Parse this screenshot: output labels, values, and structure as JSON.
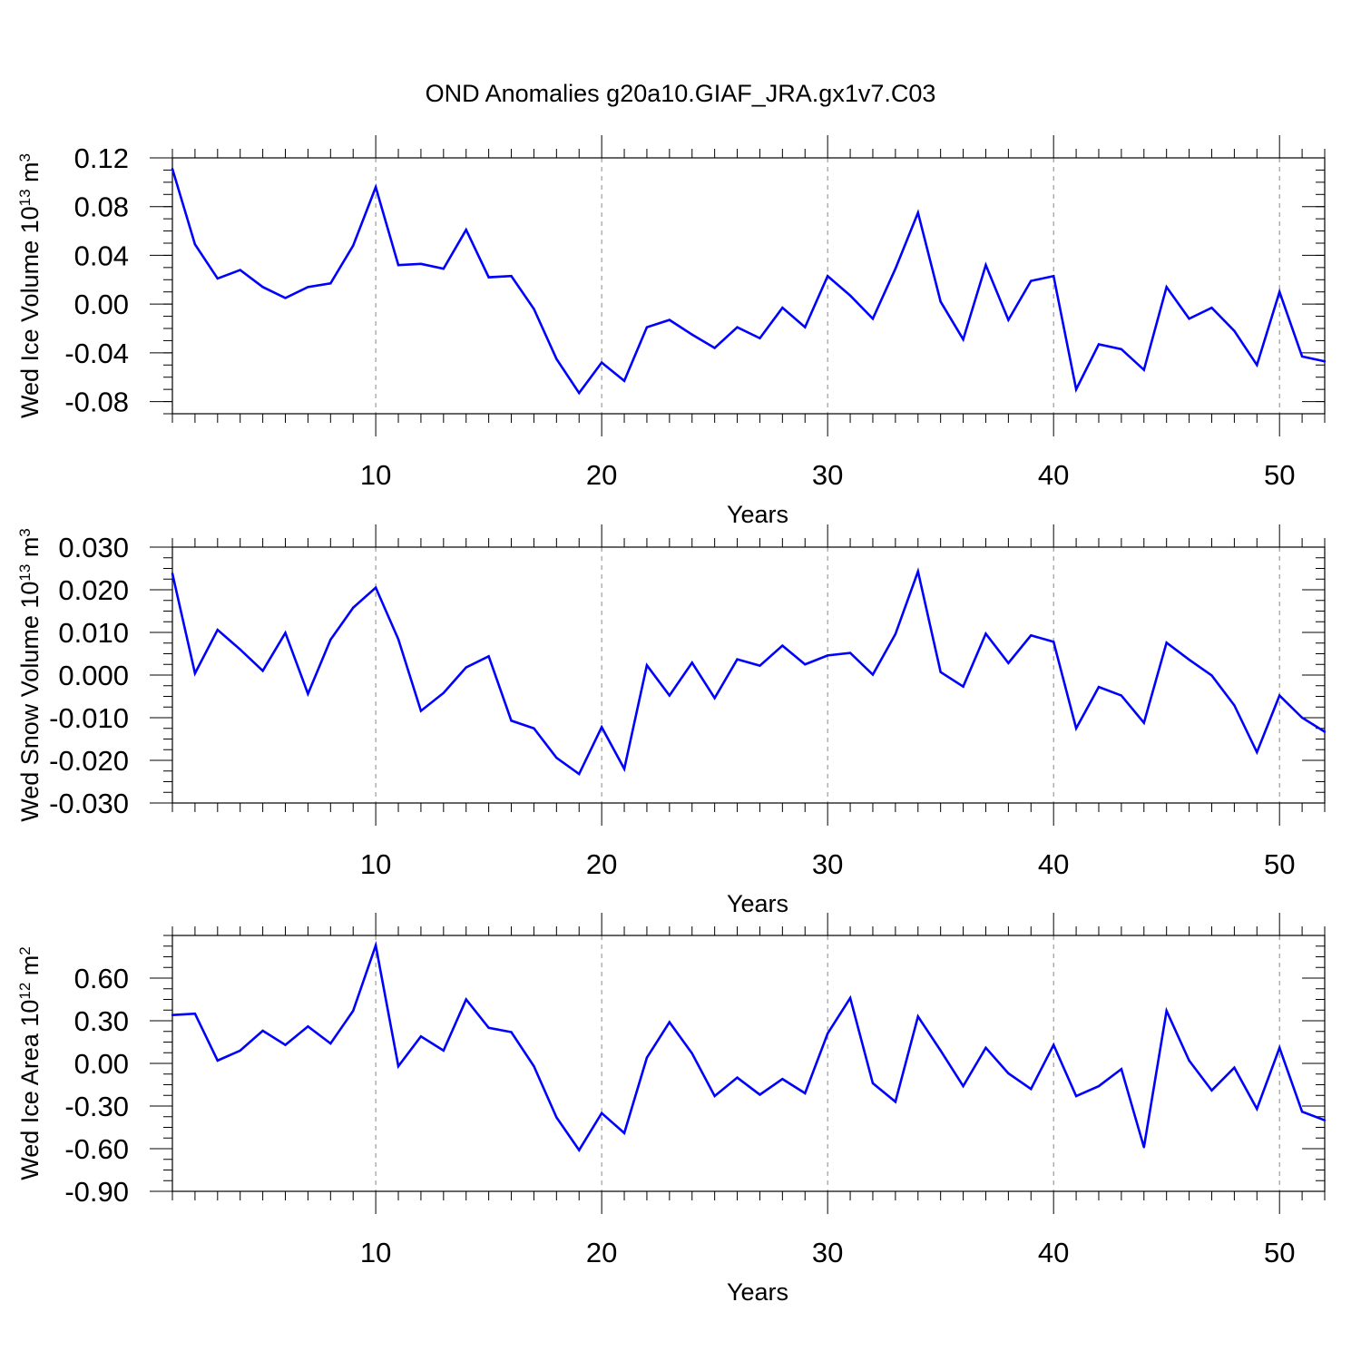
{
  "chart_data": {
    "type": "line",
    "title": "OND Anomalies g20a10.GIAF_JRA.gx1v7.C03",
    "series_color": "#0000ff",
    "grid": "vertical dashed at major x ticks",
    "panels": [
      {
        "id": "ice-volume",
        "ylabel_base": "Wed Ice Volume 10",
        "ylabel_exp": "13",
        "ylabel_unit": "m",
        "ylabel_unit_exp": "3",
        "xlabel": "Years",
        "xlim": [
          1,
          52
        ],
        "ylim": [
          -0.09,
          0.12
        ],
        "yticks": [
          -0.08,
          -0.04,
          0.0,
          0.04,
          0.08,
          0.12
        ],
        "ytick_labels": [
          "-0.08",
          "-0.04",
          "0.00",
          "0.04",
          "0.08",
          "0.12"
        ],
        "yminor_step": 0.01,
        "xticks": [
          10,
          20,
          30,
          40,
          50
        ],
        "xtick_labels": [
          "10",
          "20",
          "30",
          "40",
          "50"
        ],
        "x": [
          1,
          2,
          3,
          4,
          5,
          6,
          7,
          8,
          9,
          10,
          11,
          12,
          13,
          14,
          15,
          16,
          17,
          18,
          19,
          20,
          21,
          22,
          23,
          24,
          25,
          26,
          27,
          28,
          29,
          30,
          31,
          32,
          33,
          34,
          35,
          36,
          37,
          38,
          39,
          40,
          41,
          42,
          43,
          44,
          45,
          46,
          47,
          48,
          49,
          50,
          51,
          52
        ],
        "values": [
          0.111,
          0.049,
          0.021,
          0.028,
          0.014,
          0.005,
          0.014,
          0.017,
          0.048,
          0.096,
          0.032,
          0.033,
          0.029,
          0.061,
          0.022,
          0.023,
          -0.004,
          -0.045,
          -0.073,
          -0.048,
          -0.063,
          -0.019,
          -0.013,
          -0.025,
          -0.036,
          -0.019,
          -0.028,
          -0.003,
          -0.019,
          0.023,
          0.007,
          -0.012,
          0.029,
          0.075,
          0.002,
          -0.029,
          0.032,
          -0.013,
          0.019,
          0.023,
          -0.07,
          -0.033,
          -0.037,
          -0.054,
          0.014,
          -0.012,
          -0.003,
          -0.022,
          -0.05,
          0.01,
          -0.043,
          -0.047
        ]
      },
      {
        "id": "snow-volume",
        "ylabel_base": "Wed Snow Volume 10",
        "ylabel_exp": "13",
        "ylabel_unit": "m",
        "ylabel_unit_exp": "3",
        "xlabel": "Years",
        "xlim": [
          1,
          52
        ],
        "ylim": [
          -0.03,
          0.03
        ],
        "yticks": [
          -0.03,
          -0.02,
          -0.01,
          0.0,
          0.01,
          0.02,
          0.03
        ],
        "ytick_labels": [
          "-0.030",
          "-0.020",
          "-0.010",
          "0.000",
          "0.010",
          "0.020",
          "0.030"
        ],
        "yminor_step": 0.0025,
        "xticks": [
          10,
          20,
          30,
          40,
          50
        ],
        "xtick_labels": [
          "10",
          "20",
          "30",
          "40",
          "50"
        ],
        "x": [
          1,
          2,
          3,
          4,
          5,
          6,
          7,
          8,
          9,
          10,
          11,
          12,
          13,
          14,
          15,
          16,
          17,
          18,
          19,
          20,
          21,
          22,
          23,
          24,
          25,
          26,
          27,
          28,
          29,
          30,
          31,
          32,
          33,
          34,
          35,
          36,
          37,
          38,
          39,
          40,
          41,
          42,
          43,
          44,
          45,
          46,
          47,
          48,
          49,
          50,
          51,
          52
        ],
        "values": [
          0.0238,
          0.0004,
          0.0106,
          0.006,
          0.001,
          0.0099,
          -0.0044,
          0.0083,
          0.0158,
          0.0205,
          0.0084,
          -0.0084,
          -0.0042,
          0.0018,
          0.0044,
          -0.0107,
          -0.0125,
          -0.0194,
          -0.0232,
          -0.0122,
          -0.022,
          0.0023,
          -0.0048,
          0.0029,
          -0.0054,
          0.0037,
          0.0022,
          0.0069,
          0.0025,
          0.0046,
          0.0052,
          0.0001,
          0.0096,
          0.0243,
          0.0007,
          -0.0027,
          0.0097,
          0.0028,
          0.0093,
          0.0078,
          -0.0125,
          -0.0028,
          -0.0048,
          -0.0112,
          0.0076,
          0.0036,
          -0.0001,
          -0.0071,
          -0.0181,
          -0.0048,
          -0.01,
          -0.0133
        ]
      },
      {
        "id": "ice-area",
        "ylabel_base": "Wed Ice Area 10",
        "ylabel_exp": "12",
        "ylabel_unit": "m",
        "ylabel_unit_exp": "2",
        "xlabel": "Years",
        "xlim": [
          1,
          52
        ],
        "ylim": [
          -0.9,
          0.9
        ],
        "yticks": [
          -0.9,
          -0.6,
          -0.3,
          0.0,
          0.3,
          0.6
        ],
        "ytick_labels": [
          "-0.90",
          "-0.60",
          "-0.30",
          "0.00",
          "0.30",
          "0.60"
        ],
        "yminor_step": 0.075,
        "xticks": [
          10,
          20,
          30,
          40,
          50
        ],
        "xtick_labels": [
          "10",
          "20",
          "30",
          "40",
          "50"
        ],
        "x": [
          1,
          2,
          3,
          4,
          5,
          6,
          7,
          8,
          9,
          10,
          11,
          12,
          13,
          14,
          15,
          16,
          17,
          18,
          19,
          20,
          21,
          22,
          23,
          24,
          25,
          26,
          27,
          28,
          29,
          30,
          31,
          32,
          33,
          34,
          35,
          36,
          37,
          38,
          39,
          40,
          41,
          42,
          43,
          44,
          45,
          46,
          47,
          48,
          49,
          50,
          51,
          52
        ],
        "values": [
          0.34,
          0.35,
          0.02,
          0.09,
          0.23,
          0.13,
          0.26,
          0.14,
          0.37,
          0.83,
          -0.02,
          0.19,
          0.09,
          0.45,
          0.25,
          0.22,
          -0.02,
          -0.38,
          -0.61,
          -0.35,
          -0.49,
          0.04,
          0.29,
          0.07,
          -0.23,
          -0.1,
          -0.22,
          -0.11,
          -0.21,
          0.21,
          0.46,
          -0.14,
          -0.27,
          0.33,
          0.09,
          -0.16,
          0.11,
          -0.07,
          -0.18,
          0.13,
          -0.23,
          -0.16,
          -0.04,
          -0.59,
          0.37,
          0.02,
          -0.19,
          -0.03,
          -0.32,
          0.11,
          -0.34,
          -0.4
        ]
      }
    ]
  }
}
